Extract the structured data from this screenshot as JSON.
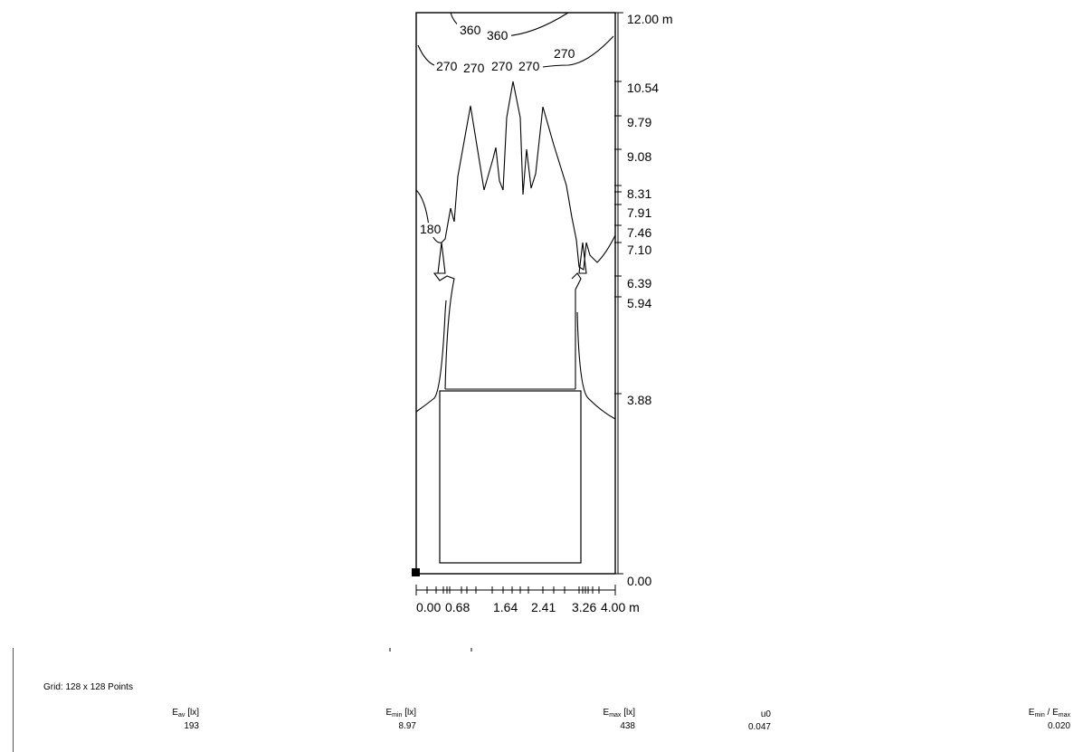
{
  "diagram": {
    "y_axis_ticks": [
      "12.00 m",
      "10.54",
      "9.79",
      "9.08",
      "8.31",
      "7.91",
      "7.46",
      "7.10",
      "6.39",
      "5.94",
      "3.88",
      "0.00"
    ],
    "x_axis_ticks": [
      "0.00",
      "0.68",
      "1.64",
      "2.41",
      "3.26",
      "4.00 m"
    ],
    "isoline_labels": [
      "360",
      "360",
      "270",
      "270",
      "270",
      "270",
      "270",
      "180"
    ]
  },
  "summary": {
    "grid": "Grid: 128 x 128 Points",
    "metrics": [
      {
        "name": "E",
        "sub": "av",
        "unit": "[lx]",
        "value": "193"
      },
      {
        "name": "E",
        "sub": "min",
        "unit": "[lx]",
        "value": "8.97"
      },
      {
        "name": "E",
        "sub": "max",
        "unit": "[lx]",
        "value": "438"
      },
      {
        "name": "u0",
        "sub": "",
        "unit": "",
        "value": "0.047"
      },
      {
        "name": "E",
        "sub": "min",
        "unit": " / E",
        "sub2": "max",
        "value": "0.020"
      }
    ]
  }
}
